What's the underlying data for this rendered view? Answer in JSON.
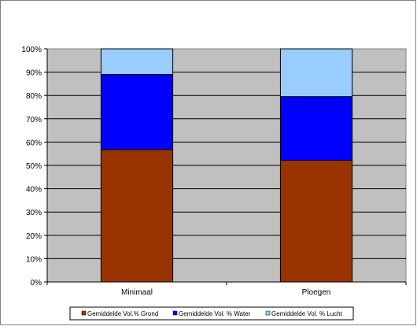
{
  "chart_data": {
    "type": "bar",
    "stacked": true,
    "percent": true,
    "categories": [
      "Minimaal",
      "Ploegen"
    ],
    "series": [
      {
        "name": "Gemiddelde  Vol.% Grond",
        "values": [
          56.8,
          52.2
        ],
        "color": "#993300"
      },
      {
        "name": "Gemiddelde Vol. %  Water",
        "values": [
          32.2,
          27.3
        ],
        "color": "#0000ff"
      },
      {
        "name": "Gemiddelde Vol. % Lucht",
        "values": [
          11.0,
          20.5
        ],
        "color": "#99ccff"
      }
    ],
    "ylim": [
      0,
      100
    ],
    "yticks": [
      "0%",
      "10%",
      "20%",
      "30%",
      "40%",
      "50%",
      "60%",
      "70%",
      "80%",
      "90%",
      "100%"
    ],
    "grid": true,
    "plot_background": "#c0c0c0",
    "legend_position": "bottom"
  }
}
